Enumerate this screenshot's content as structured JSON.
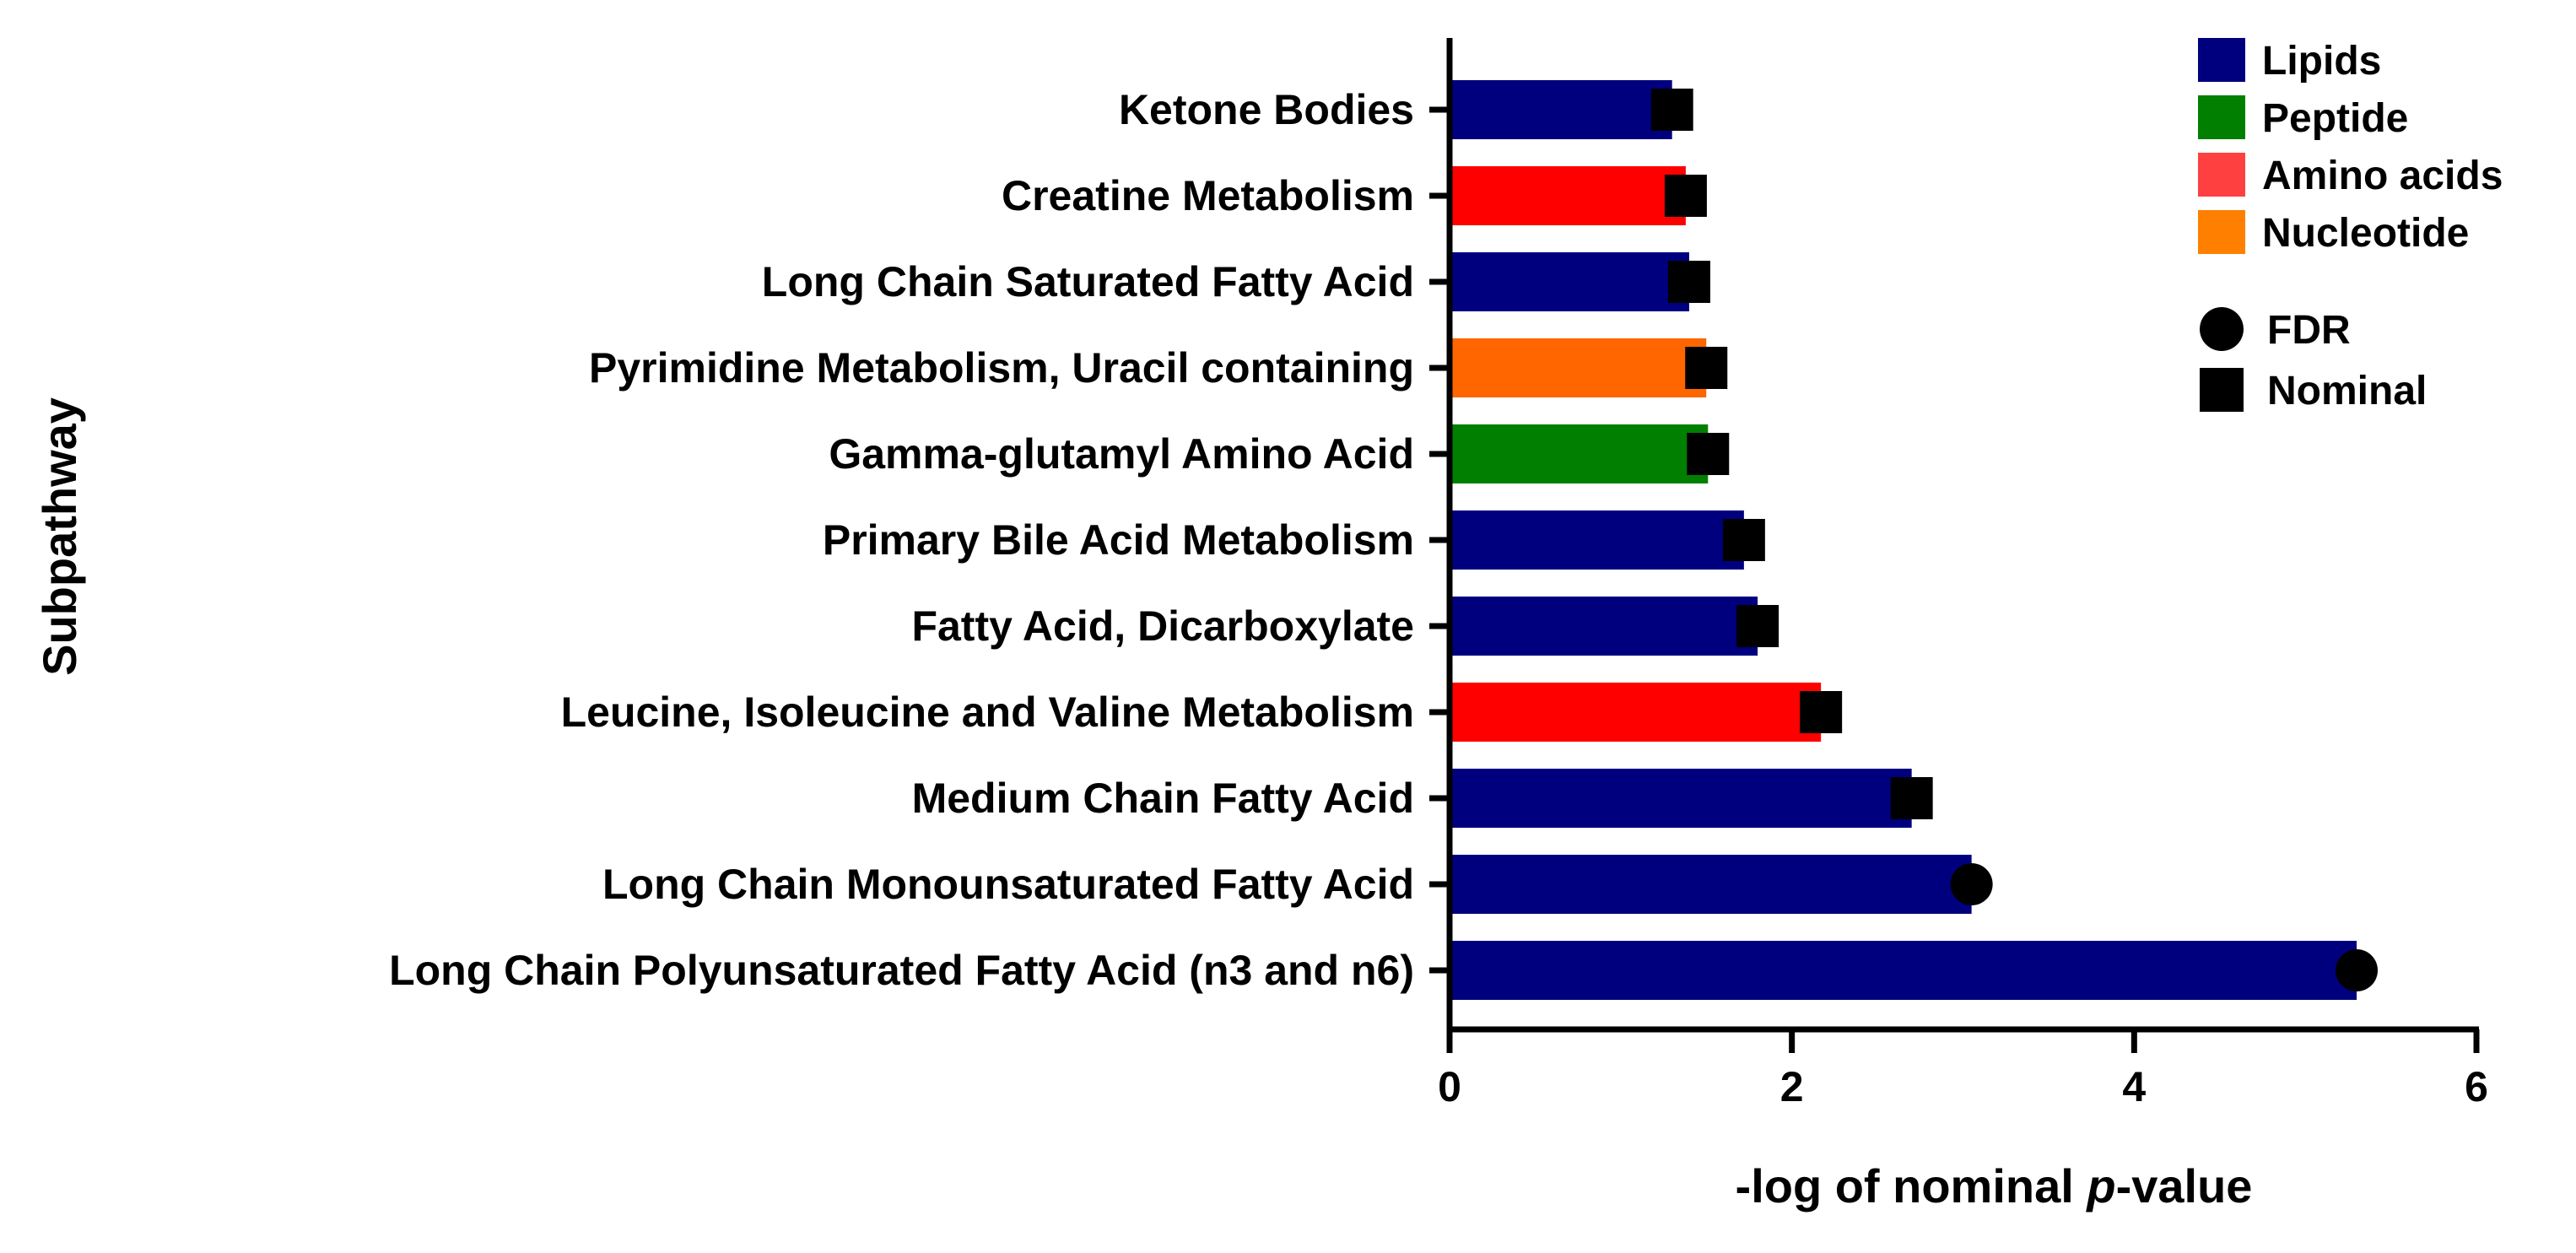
{
  "chart_data": {
    "type": "bar",
    "orientation": "horizontal",
    "xlabel_prefix": "-log of nominal ",
    "xlabel_italic": "p",
    "xlabel_suffix": "-value",
    "ylabel": "Subpathway",
    "xlim": [
      0,
      6
    ],
    "xticks": [
      "0",
      "2",
      "4",
      "6"
    ],
    "grid": false,
    "legend_position": "top-right",
    "categories": [
      "Ketone Bodies",
      "Creatine Metabolism",
      "Long Chain Saturated Fatty Acid",
      "Pyrimidine Metabolism, Uracil containing",
      "Gamma-glutamyl Amino Acid",
      "Primary Bile Acid Metabolism",
      "Fatty Acid, Dicarboxylate",
      "Leucine, Isoleucine and Valine Metabolism",
      "Medium Chain Fatty Acid",
      "Long Chain Monounsaturated Fatty Acid",
      "Long Chain Polyunsaturated Fatty Acid (n3 and n6)"
    ],
    "values": [
      1.3,
      1.38,
      1.4,
      1.5,
      1.51,
      1.72,
      1.8,
      2.17,
      2.7,
      3.05,
      5.3
    ],
    "groups": [
      "Lipids",
      "Amino acids",
      "Lipids",
      "Nucleotide",
      "Peptide",
      "Lipids",
      "Lipids",
      "Amino acids",
      "Lipids",
      "Lipids",
      "Lipids"
    ],
    "markers": [
      "Nominal",
      "Nominal",
      "Nominal",
      "Nominal",
      "Nominal",
      "Nominal",
      "Nominal",
      "Nominal",
      "Nominal",
      "FDR",
      "FDR"
    ],
    "group_colors": {
      "Lipids": "#00007f",
      "Peptide": "#007f00",
      "Amino acids": "#ff0000",
      "Nucleotide": "#ff6600"
    },
    "legend": {
      "groups": [
        {
          "label": "Lipids",
          "color": "#00007f"
        },
        {
          "label": "Peptide",
          "color": "#007f00"
        },
        {
          "label": "Amino acids",
          "color": "#ff4040"
        },
        {
          "label": "Nucleotide",
          "color": "#ff8000"
        }
      ],
      "markers": [
        {
          "label": "FDR",
          "shape": "circle"
        },
        {
          "label": "Nominal",
          "shape": "square"
        }
      ]
    }
  }
}
